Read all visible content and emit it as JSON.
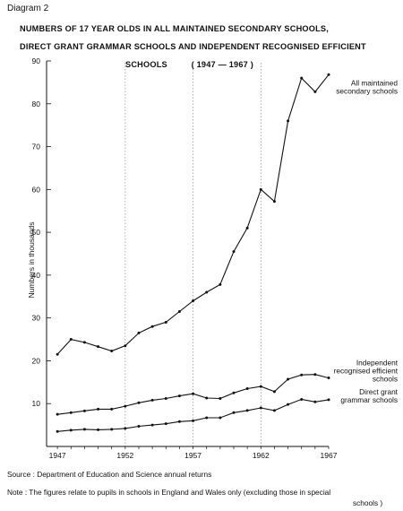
{
  "header": {
    "diagram_label": "Diagram 2",
    "title_line1": "NUMBERS OF 17 YEAR OLDS IN ALL MAINTAINED SECONDARY SCHOOLS,",
    "title_line2": "DIRECT GRANT GRAMMAR SCHOOLS AND INDEPENDENT RECOGNISED EFFICIENT",
    "title_line3_a": "SCHOOLS",
    "title_line3_b": "( 1947 — 1967 )"
  },
  "footer": {
    "source": "Source : Department of Education and Science annual returns",
    "note": "Note   : The figures relate to pupils in schools in England and Wales only (excluding those in special",
    "note_cont": "schools )"
  },
  "chart_data": {
    "type": "line",
    "title": "NUMBERS OF 17 YEAR OLDS IN ALL MAINTAINED SECONDARY SCHOOLS, DIRECT GRANT GRAMMAR SCHOOLS AND INDEPENDENT RECOGNISED EFFICIENT SCHOOLS ( 1947 — 1967 )",
    "xlabel": "",
    "ylabel": "Numbers in thousands",
    "xlim": [
      1946.2,
      1967
    ],
    "ylim": [
      0,
      90
    ],
    "x_ticks": [
      "1947",
      "1952",
      "1957",
      "1962",
      "1967"
    ],
    "y_ticks": [
      "10",
      "20",
      "30",
      "40",
      "50",
      "60",
      "70",
      "80",
      "90"
    ],
    "grid": "vertical dotted lines at 1952, 1957, 1962",
    "x": [
      1947,
      1948,
      1949,
      1950,
      1951,
      1952,
      1953,
      1954,
      1955,
      1956,
      1957,
      1958,
      1959,
      1960,
      1961,
      1962,
      1963,
      1964,
      1965,
      1966,
      1967
    ],
    "series": [
      {
        "name": "All maintained secondary schools",
        "label_lines": [
          "All maintained",
          "secondary schools"
        ],
        "values": [
          21.5,
          25,
          24.3,
          23.3,
          22.3,
          23.5,
          26.5,
          28,
          29,
          31.5,
          34,
          36,
          37.8,
          45.5,
          51,
          60,
          57.2,
          76,
          86,
          82.8,
          86.8
        ]
      },
      {
        "name": "Independent recognised efficient schools",
        "label_lines": [
          "Independent",
          "recognised efficient",
          "schools"
        ],
        "values": [
          7.5,
          7.9,
          8.3,
          8.7,
          8.7,
          9.4,
          10.2,
          10.8,
          11.2,
          11.8,
          12.3,
          11.3,
          11.2,
          12.5,
          13.5,
          14,
          12.8,
          15.7,
          16.7,
          16.8,
          16
        ]
      },
      {
        "name": "Direct grant grammar schools",
        "label_lines": [
          "Direct grant",
          "grammar schools"
        ],
        "values": [
          3.5,
          3.8,
          4,
          3.9,
          4,
          4.2,
          4.7,
          5,
          5.3,
          5.8,
          6,
          6.7,
          6.7,
          7.9,
          8.4,
          9,
          8.4,
          9.8,
          11,
          10.4,
          10.9
        ]
      }
    ]
  }
}
